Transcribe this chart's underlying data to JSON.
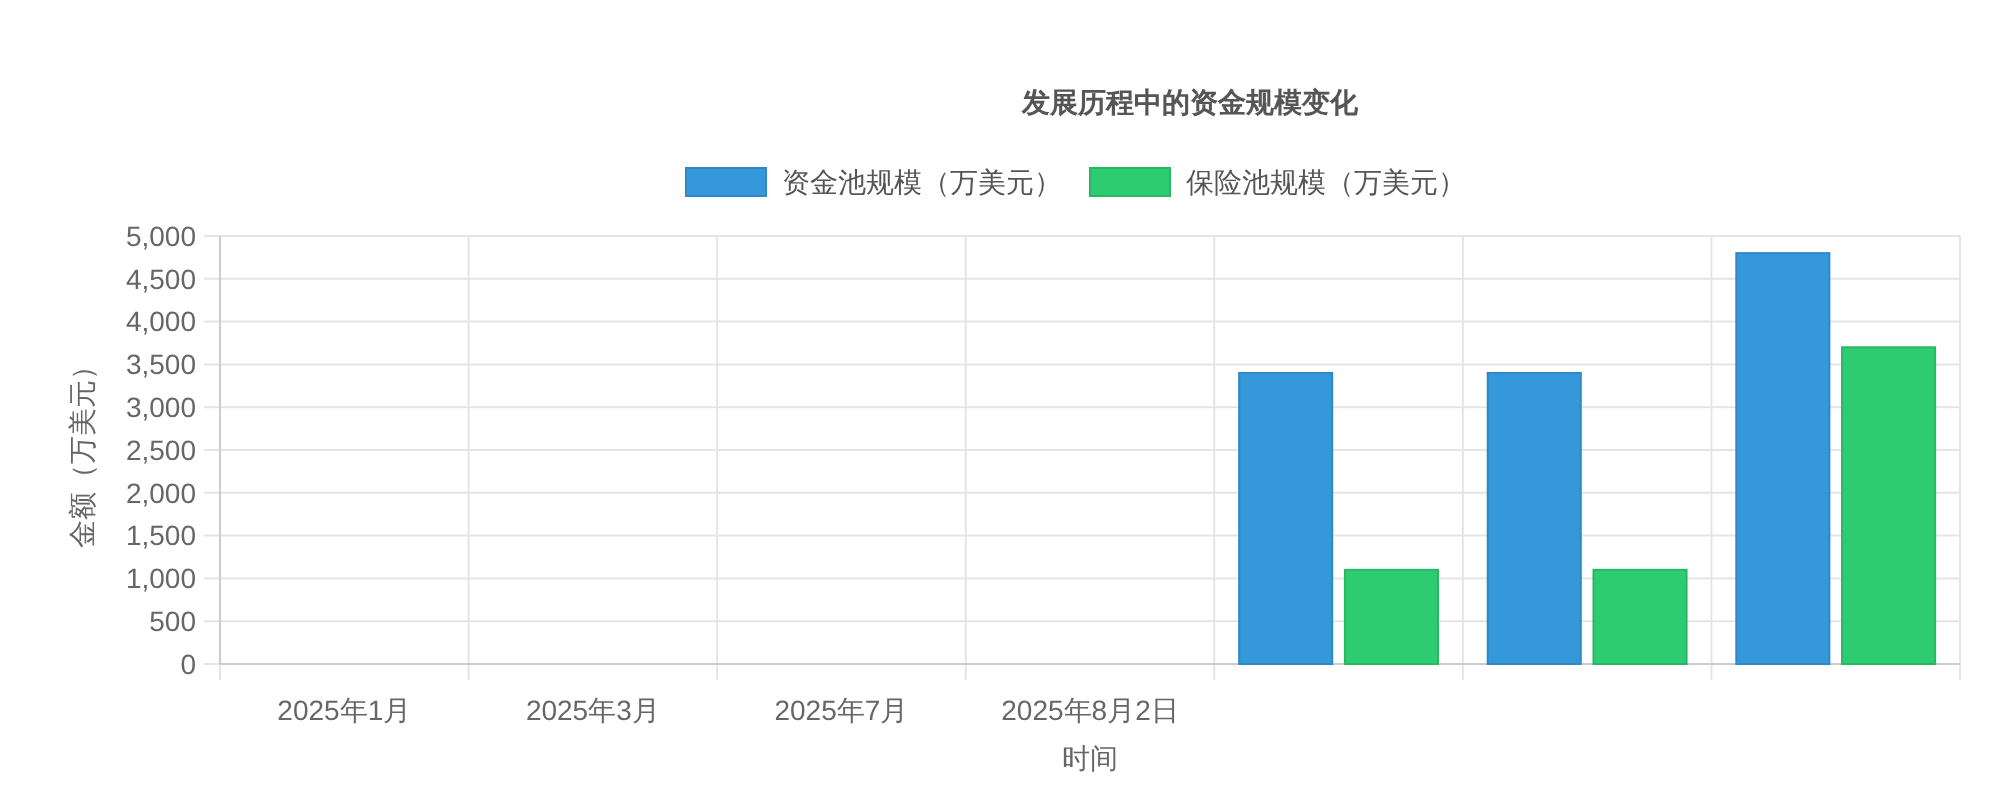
{
  "chart_data": {
    "type": "bar",
    "title": "发展历程中的资金规模变化",
    "xlabel": "时间",
    "ylabel": "金额（万美元）",
    "categories": [
      "2025年1月",
      "2025年3月",
      "2025年7月",
      "2025年8月2日",
      null,
      null,
      null
    ],
    "series": [
      {
        "name": "资金池规模（万美元）",
        "color": "#3498db",
        "values": [
          0,
          0,
          0,
          0,
          3400,
          3400,
          4800
        ]
      },
      {
        "name": "保险池规模（万美元）",
        "color": "#2ecc71",
        "values": [
          0,
          0,
          0,
          0,
          1100,
          1100,
          3700
        ]
      }
    ],
    "ylim": [
      0,
      5000
    ],
    "yticks": [
      {
        "value": 0,
        "label": "0"
      },
      {
        "value": 500,
        "label": "500"
      },
      {
        "value": 1000,
        "label": "1,000"
      },
      {
        "value": 1500,
        "label": "1,500"
      },
      {
        "value": 2000,
        "label": "2,000"
      },
      {
        "value": 2500,
        "label": "2,500"
      },
      {
        "value": 3000,
        "label": "3,000"
      },
      {
        "value": 3500,
        "label": "3,500"
      },
      {
        "value": 4000,
        "label": "4,000"
      },
      {
        "value": 4500,
        "label": "4,500"
      },
      {
        "value": 5000,
        "label": "5,000"
      }
    ],
    "grid": true,
    "legend": "top"
  }
}
